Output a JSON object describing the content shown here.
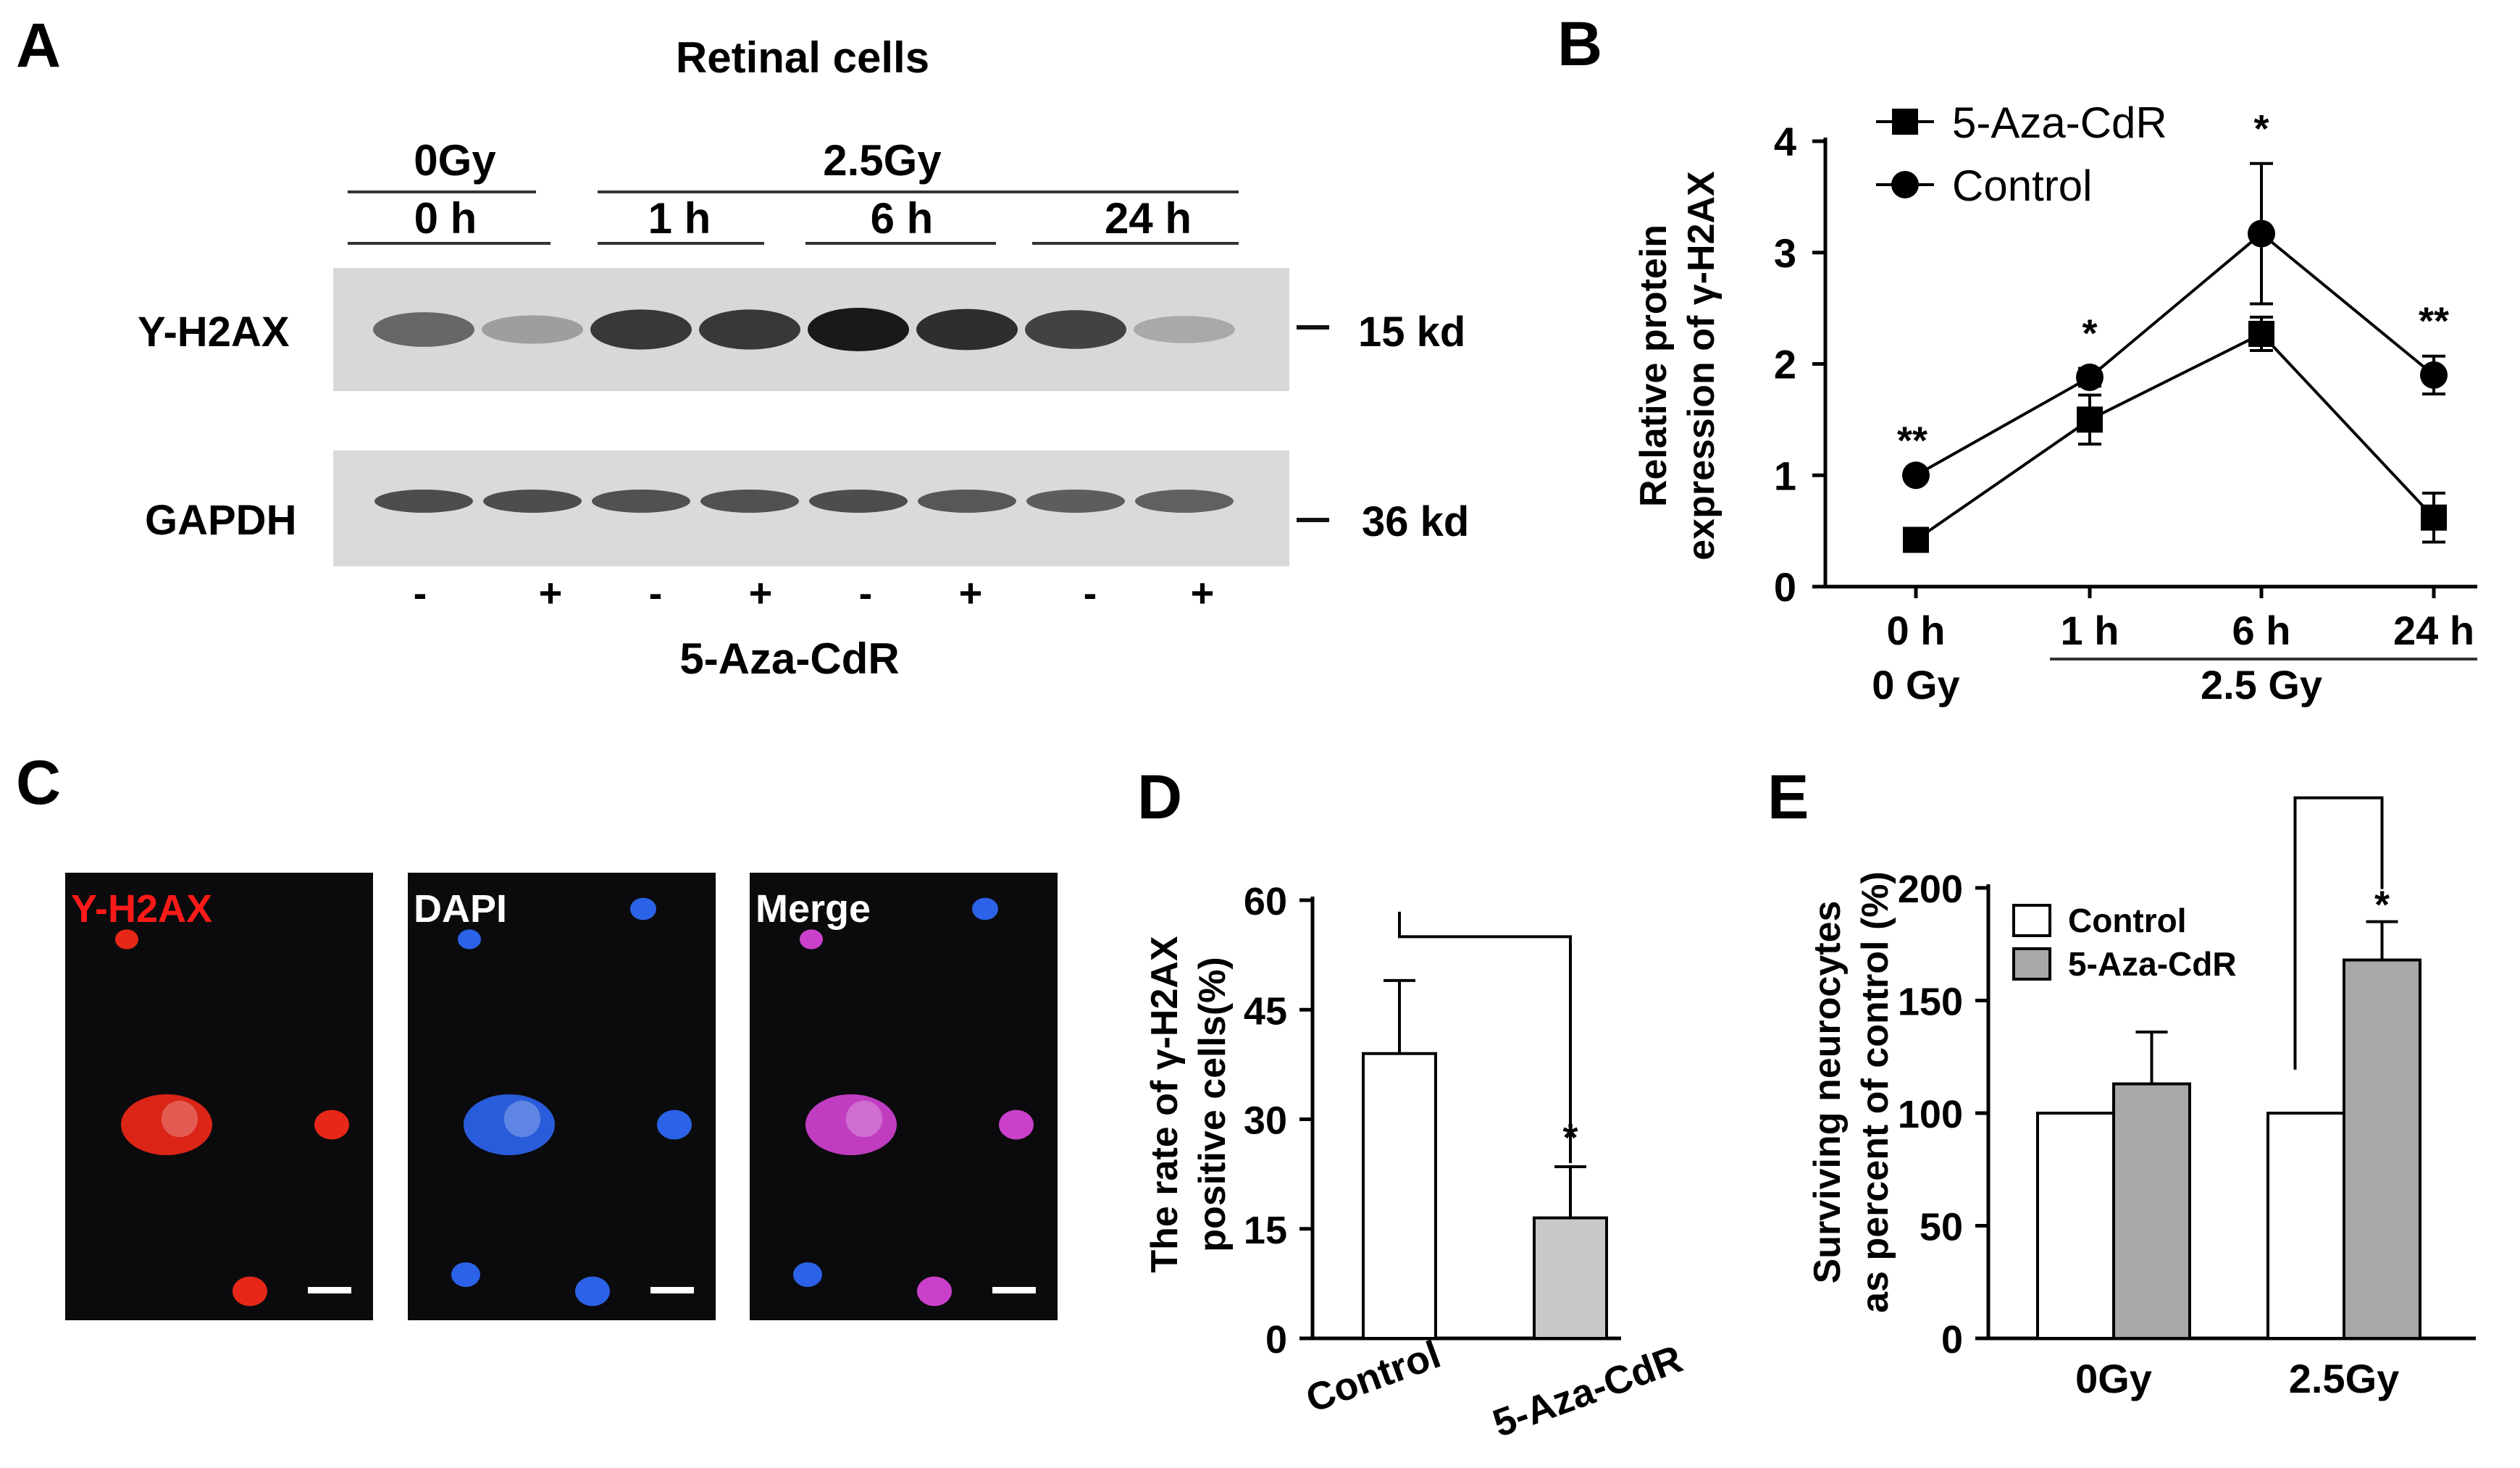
{
  "panel_letters": {
    "a": "A",
    "b": "B",
    "c": "C",
    "d": "D",
    "e": "E"
  },
  "panel_a": {
    "title": "Retinal cells",
    "dose_0": "0Gy",
    "dose_25": "2.5Gy",
    "times": [
      "0 h",
      "1 h",
      "6 h",
      "24 h"
    ],
    "row_labels": [
      "Y-H2AX",
      "GAPDH"
    ],
    "mw": [
      "15 kd",
      "36 kd"
    ],
    "lane_signs": [
      "-",
      "+",
      "-",
      "+",
      "-",
      "+",
      "-",
      "+"
    ],
    "treatment": "5-Aza-CdR",
    "h2ax_intensity": [
      0.62,
      0.35,
      0.85,
      0.85,
      1.0,
      0.9,
      0.8,
      0.3
    ],
    "gapdh_intensity": [
      0.8,
      0.8,
      0.78,
      0.78,
      0.8,
      0.75,
      0.72,
      0.7
    ]
  },
  "panel_c": {
    "labels": [
      "Y-H2AX",
      "DAPI",
      "Merge"
    ],
    "colors": {
      "h2ax": "#ff2a1a",
      "dapi": "#2f6bff",
      "merge": "#e046e0",
      "background": "#0b0b0d"
    }
  },
  "chart_data": [
    {
      "type": "line",
      "title": "",
      "ylabel_lines": [
        "Relative protein",
        "expression of γ-H2AX"
      ],
      "x": [
        "0 h",
        "1 h",
        "6 h",
        "24 h"
      ],
      "group_labels": [
        "0 Gy",
        "2.5 Gy"
      ],
      "ylim": [
        0,
        4
      ],
      "yticks": [
        0,
        1,
        2,
        3,
        4
      ],
      "legend_position": "top-left",
      "series": [
        {
          "name": "5-Aza-CdR",
          "marker": "square",
          "values": [
            0.42,
            1.5,
            2.27,
            0.62
          ],
          "errors": [
            0.05,
            0.22,
            0.15,
            0.22
          ]
        },
        {
          "name": "Control",
          "marker": "circle",
          "values": [
            1.0,
            1.88,
            3.17,
            1.9
          ],
          "errors": [
            0.0,
            0.08,
            0.63,
            0.17
          ]
        }
      ],
      "significance": [
        "**",
        "*",
        "*",
        "**"
      ]
    },
    {
      "type": "bar",
      "title": "",
      "ylabel_lines": [
        "The rate of γ-H2AX",
        "positive cells(%)"
      ],
      "categories": [
        "Control",
        "5-Aza-CdR"
      ],
      "values": [
        39,
        16.5
      ],
      "errors": [
        10,
        7
      ],
      "colors": [
        "#ffffff",
        "#c8c8c8"
      ],
      "ylim": [
        0,
        60
      ],
      "yticks": [
        0,
        15,
        30,
        45,
        60
      ],
      "significance": "*"
    },
    {
      "type": "bar",
      "title": "",
      "ylabel_lines": [
        "Surviving neurocytes",
        "as percent of control (%)"
      ],
      "categories": [
        "0Gy",
        "2.5Gy"
      ],
      "ylim": [
        0,
        200
      ],
      "yticks": [
        0,
        50,
        100,
        150,
        200
      ],
      "legend_position": "top-left",
      "series": [
        {
          "name": "Control",
          "color": "#ffffff",
          "values": [
            100,
            100
          ],
          "errors": [
            0,
            0
          ]
        },
        {
          "name": "5-Aza-CdR",
          "color": "#a8a8a8",
          "values": [
            113,
            168
          ],
          "errors": [
            23,
            17
          ]
        }
      ],
      "significance": "*"
    }
  ]
}
